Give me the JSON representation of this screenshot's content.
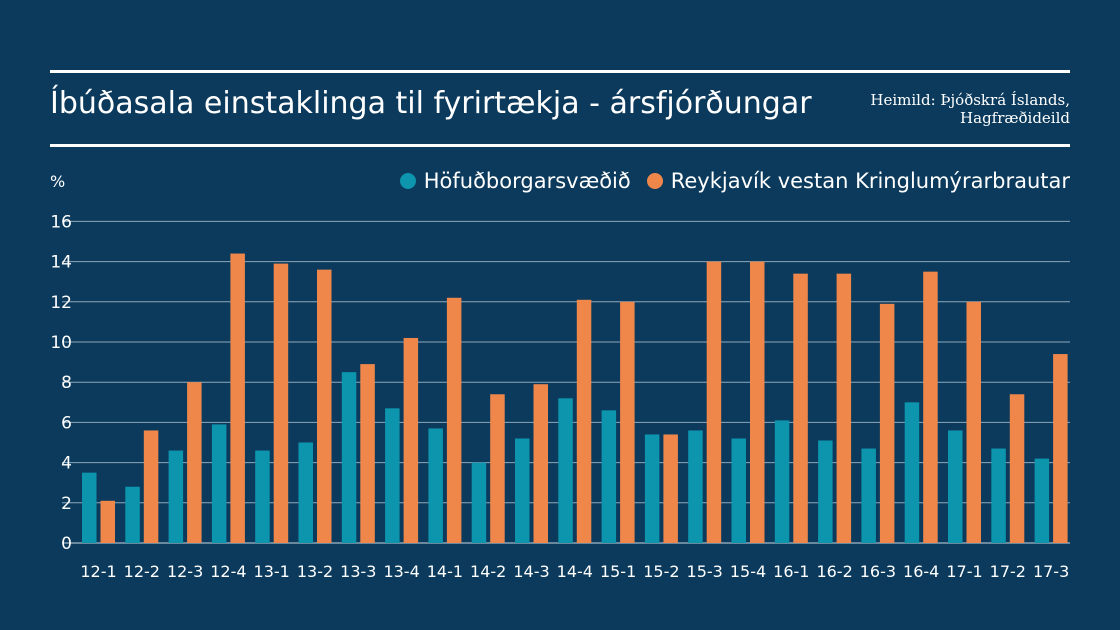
{
  "header": {
    "title": "Íbúðasala einstaklinga til fyrirtækja - ársfjórðungar",
    "source_line1": "Heimild: Þjóðskrá Íslands,",
    "source_line2": "Hagfræðideild"
  },
  "colors": {
    "background": "#0b3a5c",
    "series1": "#0d95ad",
    "series2": "#f0874a",
    "grid": "#8fa7ba",
    "text": "#ffffff"
  },
  "chart_data": {
    "type": "bar",
    "unit_label": "%",
    "categories": [
      "12-1",
      "12-2",
      "12-3",
      "12-4",
      "13-1",
      "13-2",
      "13-3",
      "13-4",
      "14-1",
      "14-2",
      "14-3",
      "14-4",
      "15-1",
      "15-2",
      "15-3",
      "15-4",
      "16-1",
      "16-2",
      "16-3",
      "16-4",
      "17-1",
      "17-2",
      "17-3"
    ],
    "series": [
      {
        "name": "Höfuðborgarsvæðið",
        "values": [
          3.5,
          2.8,
          4.6,
          5.9,
          4.6,
          5.0,
          8.5,
          6.7,
          5.7,
          4.0,
          5.2,
          7.2,
          6.6,
          5.4,
          5.6,
          5.2,
          6.1,
          5.1,
          4.7,
          7.0,
          5.6,
          4.7,
          4.2
        ]
      },
      {
        "name": "Reykjavík vestan Kringlumýrarbrautar",
        "values": [
          2.1,
          5.6,
          8.0,
          14.4,
          13.9,
          13.6,
          8.9,
          10.2,
          12.2,
          7.4,
          7.9,
          12.1,
          12.0,
          5.4,
          14.0,
          14.0,
          13.4,
          13.4,
          11.9,
          13.5,
          12.0,
          7.4,
          9.4
        ]
      }
    ],
    "y_ticks": [
      0,
      2,
      4,
      6,
      8,
      10,
      12,
      14,
      16
    ],
    "ylim": [
      0,
      16
    ],
    "grid": true,
    "legend_position": "top-right"
  }
}
